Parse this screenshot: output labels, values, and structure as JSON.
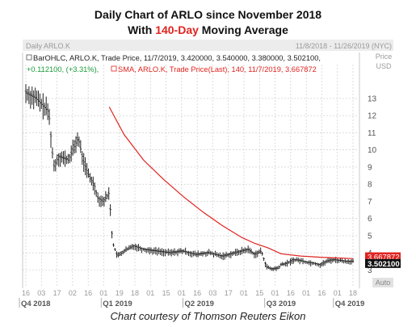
{
  "header": {
    "title": "Daily Chart of ARLO since November 2018",
    "subtitle_prefix": "With ",
    "subtitle_highlight": "140-Day",
    "subtitle_suffix": " Moving Average"
  },
  "panel": {
    "name": "Daily ARLO.K",
    "date_range": "11/8/2018 - 11/26/2019 (NYC)",
    "price_label": "Price",
    "currency": "USD",
    "auto_label": "Auto",
    "ohlc_legend": "BarOHLC, ARLO.K, Trade Price, 11/7/2019, 3.420000, 3.540000, 3.380000, 3.502100,",
    "change_legend": "+0.112100, (+3.31%),",
    "sma_legend": "SMA, ARLO.K, Trade Price(Last), 140, 11/7/2019, 3.667872"
  },
  "caption": "Chart courtesy of Thomson Reuters Eikon",
  "colors": {
    "price_bars": "#222222",
    "sma_line": "#e0231f",
    "grid": "#c8c8c8",
    "title_highlight": "#e0231f",
    "sma_tag": "#e0231f",
    "last_tag": "#111111"
  },
  "chart_data": {
    "type": "line",
    "ylim": [
      2.6,
      14.5
    ],
    "y_ticks": [
      3,
      4,
      5,
      6,
      7,
      8,
      9,
      10,
      11,
      12,
      13
    ],
    "x_tick_labels": [
      "16",
      "03",
      "17",
      "02",
      "16",
      "01",
      "19",
      "18",
      "01",
      "15",
      "01",
      "16",
      "03",
      "17",
      "01",
      "15",
      "01",
      "16",
      "01",
      "16",
      "01",
      "18"
    ],
    "quarters": [
      "Q4 2018",
      "Q1 2019",
      "Q2 2019",
      "Q3 2019",
      "Q4 2019"
    ],
    "last_values": [
      "3.667872",
      "3.502100"
    ],
    "series": [
      {
        "name": "SMA, ARLO.K, Trade Price(Last), 140",
        "x": [
          0.255,
          0.3,
          0.36,
          0.42,
          0.48,
          0.54,
          0.6,
          0.66,
          0.7,
          0.74,
          0.78,
          0.84,
          0.9,
          0.96,
          1.0
        ],
        "values": [
          12.5,
          10.9,
          9.4,
          8.3,
          7.3,
          6.4,
          5.6,
          4.9,
          4.55,
          4.3,
          3.95,
          3.82,
          3.75,
          3.7,
          3.67
        ]
      },
      {
        "name": "BarOHLC, ARLO.K, Trade Price",
        "x": [
          0.0,
          0.03,
          0.05,
          0.07,
          0.085,
          0.1,
          0.13,
          0.16,
          0.175,
          0.19,
          0.21,
          0.22,
          0.235,
          0.245,
          0.255,
          0.265,
          0.28,
          0.3,
          0.33,
          0.36,
          0.4,
          0.44,
          0.48,
          0.52,
          0.56,
          0.6,
          0.64,
          0.68,
          0.7,
          0.72,
          0.735,
          0.75,
          0.77,
          0.78,
          0.8,
          0.82,
          0.84,
          0.86,
          0.88,
          0.9,
          0.92,
          0.94,
          0.96,
          0.98,
          1.0
        ],
        "values": [
          13.3,
          13.0,
          12.6,
          12.2,
          9.0,
          9.6,
          9.4,
          10.7,
          9.4,
          8.6,
          7.9,
          7.2,
          7.0,
          7.2,
          7.5,
          4.6,
          3.8,
          4.1,
          4.4,
          4.2,
          4.1,
          4.0,
          4.1,
          3.9,
          4.0,
          3.8,
          4.0,
          4.2,
          3.9,
          4.1,
          3.2,
          3.05,
          3.1,
          3.3,
          3.4,
          3.6,
          3.55,
          3.45,
          3.4,
          3.3,
          3.5,
          3.6,
          3.55,
          3.5,
          3.5
        ]
      }
    ]
  }
}
